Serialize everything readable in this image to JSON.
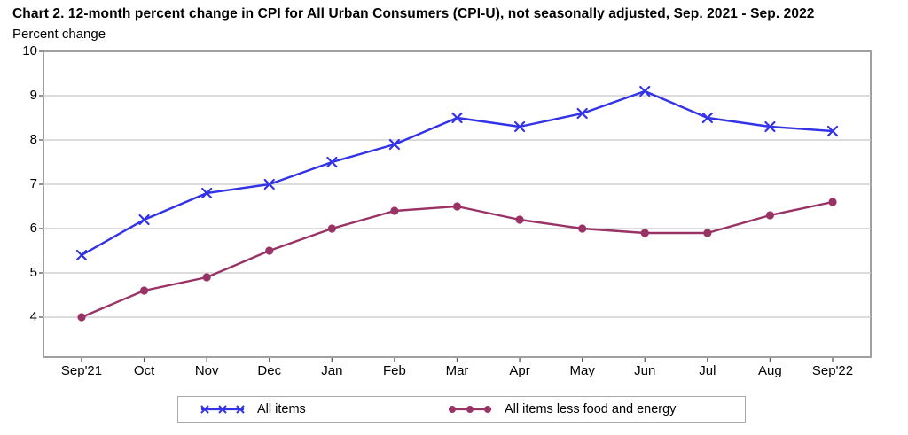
{
  "header": {
    "title": "Chart 2. 12-month percent change in CPI for All Urban Consumers (CPI-U), not seasonally adjusted, Sep. 2021 - Sep. 2022",
    "axis_unit_label": "Percent change"
  },
  "chart_data": {
    "type": "line",
    "title": "Chart 2. 12-month percent change in CPI for All Urban Consumers (CPI-U), not seasonally adjusted, Sep. 2021 - Sep. 2022",
    "ylabel": "Percent change",
    "xlabel": "",
    "categories": [
      "Sep'21",
      "Oct",
      "Nov",
      "Dec",
      "Jan",
      "Feb",
      "Mar",
      "Apr",
      "May",
      "Jun",
      "Jul",
      "Aug",
      "Sep'22"
    ],
    "series": [
      {
        "name": "All items",
        "color": "#3232e6",
        "marker": "x",
        "values": [
          5.4,
          6.2,
          6.8,
          7.0,
          7.5,
          7.9,
          8.5,
          8.3,
          8.6,
          9.1,
          8.5,
          8.3,
          8.2
        ]
      },
      {
        "name": "All items less food and energy",
        "color": "#993366",
        "marker": "circle",
        "values": [
          4.0,
          4.6,
          4.9,
          5.5,
          6.0,
          6.4,
          6.5,
          6.2,
          6.0,
          5.9,
          5.9,
          6.3,
          6.6
        ]
      }
    ],
    "yticks": [
      4,
      5,
      6,
      7,
      8,
      9,
      10
    ],
    "ylim": [
      3.1,
      10
    ],
    "grid": "horizontal",
    "legend_position": "bottom"
  },
  "colors": {
    "all_items_line": "#3232e6",
    "core_line": "#993366",
    "gridline": "#c6c6c6",
    "plot_border": "#a0a0a0",
    "tick": "#595959",
    "legend_border": "#a8a8a8",
    "background": "#ffffff"
  }
}
